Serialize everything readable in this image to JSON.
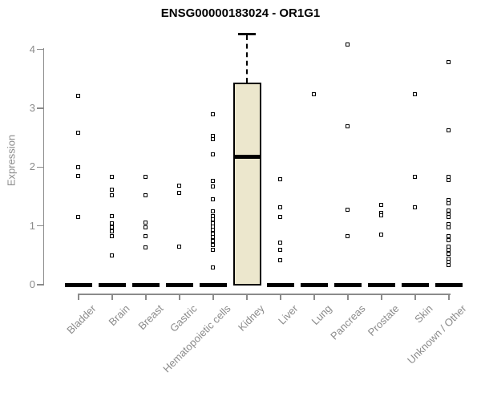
{
  "chart_data": {
    "type": "boxplot",
    "title": "ENSG00000183024 - OR1G1",
    "ylabel": "Expression",
    "ylim": [
      0,
      4.35
    ],
    "yticks": [
      0,
      1,
      2,
      3,
      4
    ],
    "grid": false,
    "legend": "none",
    "categories": [
      "Bladder",
      "Brain",
      "Breast",
      "Gastric",
      "Hematopoietic cells",
      "Kidney",
      "Liver",
      "Lung",
      "Pancreas",
      "Prostate",
      "Skin",
      "Unknown / Other"
    ],
    "boxes": [
      {
        "category": "Bladder",
        "q1": 0,
        "median": 0,
        "q3": 0,
        "outliers": [
          3.21,
          2.58,
          2.0,
          1.85,
          1.15
        ]
      },
      {
        "category": "Brain",
        "q1": 0,
        "median": 0,
        "q3": 0,
        "outliers": [
          1.83,
          1.62,
          1.52,
          1.16,
          1.04,
          0.98,
          0.91,
          0.83,
          0.5
        ]
      },
      {
        "category": "Breast",
        "q1": 0,
        "median": 0,
        "q3": 0,
        "outliers": [
          1.84,
          1.52,
          1.06,
          0.98,
          0.82,
          0.64
        ]
      },
      {
        "category": "Gastric",
        "q1": 0,
        "median": 0,
        "q3": 0,
        "outliers": [
          1.69,
          1.56,
          0.65
        ]
      },
      {
        "category": "Hematopoietic cells",
        "q1": 0,
        "median": 0,
        "q3": 0,
        "outliers": [
          2.9,
          2.53,
          2.48,
          2.21,
          1.76,
          1.67,
          1.45,
          1.25,
          1.17,
          1.11,
          1.05,
          0.99,
          0.93,
          0.87,
          0.81,
          0.74,
          0.67,
          0.59,
          0.3
        ]
      },
      {
        "category": "Kidney",
        "q1": 0,
        "median": 2.17,
        "q3": 3.43,
        "whisker_high": 4.26,
        "outliers": []
      },
      {
        "category": "Liver",
        "q1": 0,
        "median": 0,
        "q3": 0,
        "outliers": [
          1.8,
          1.31,
          1.15,
          0.71,
          0.6,
          0.42
        ]
      },
      {
        "category": "Lung",
        "q1": 0,
        "median": 0,
        "q3": 0,
        "outliers": [
          3.24
        ]
      },
      {
        "category": "Pancreas",
        "q1": 0,
        "median": 0,
        "q3": 0,
        "outliers": [
          4.09,
          2.7,
          1.28,
          0.83
        ]
      },
      {
        "category": "Prostate",
        "q1": 0,
        "median": 0,
        "q3": 0,
        "outliers": [
          1.36,
          1.22,
          1.18,
          0.85
        ]
      },
      {
        "category": "Skin",
        "q1": 0,
        "median": 0,
        "q3": 0,
        "outliers": [
          3.24,
          1.84,
          1.31
        ]
      },
      {
        "category": "Unknown / Other",
        "q1": 0,
        "median": 0,
        "q3": 0,
        "outliers": [
          3.79,
          2.62,
          1.83,
          1.78,
          1.44,
          1.38,
          1.26,
          1.2,
          1.15,
          1.03,
          0.97,
          0.83,
          0.76,
          0.65,
          0.59,
          0.52,
          0.44,
          0.39,
          0.33
        ]
      }
    ],
    "colors": {
      "background": "#ffffff",
      "title": "#000000",
      "axis": "#8b8b8b",
      "tick_label": "#8b8b8b",
      "box_fill": "#ece7cd",
      "box_border": "#000000",
      "median_line": "#000000",
      "point": "#000000",
      "zero_bar": "#000000"
    }
  }
}
